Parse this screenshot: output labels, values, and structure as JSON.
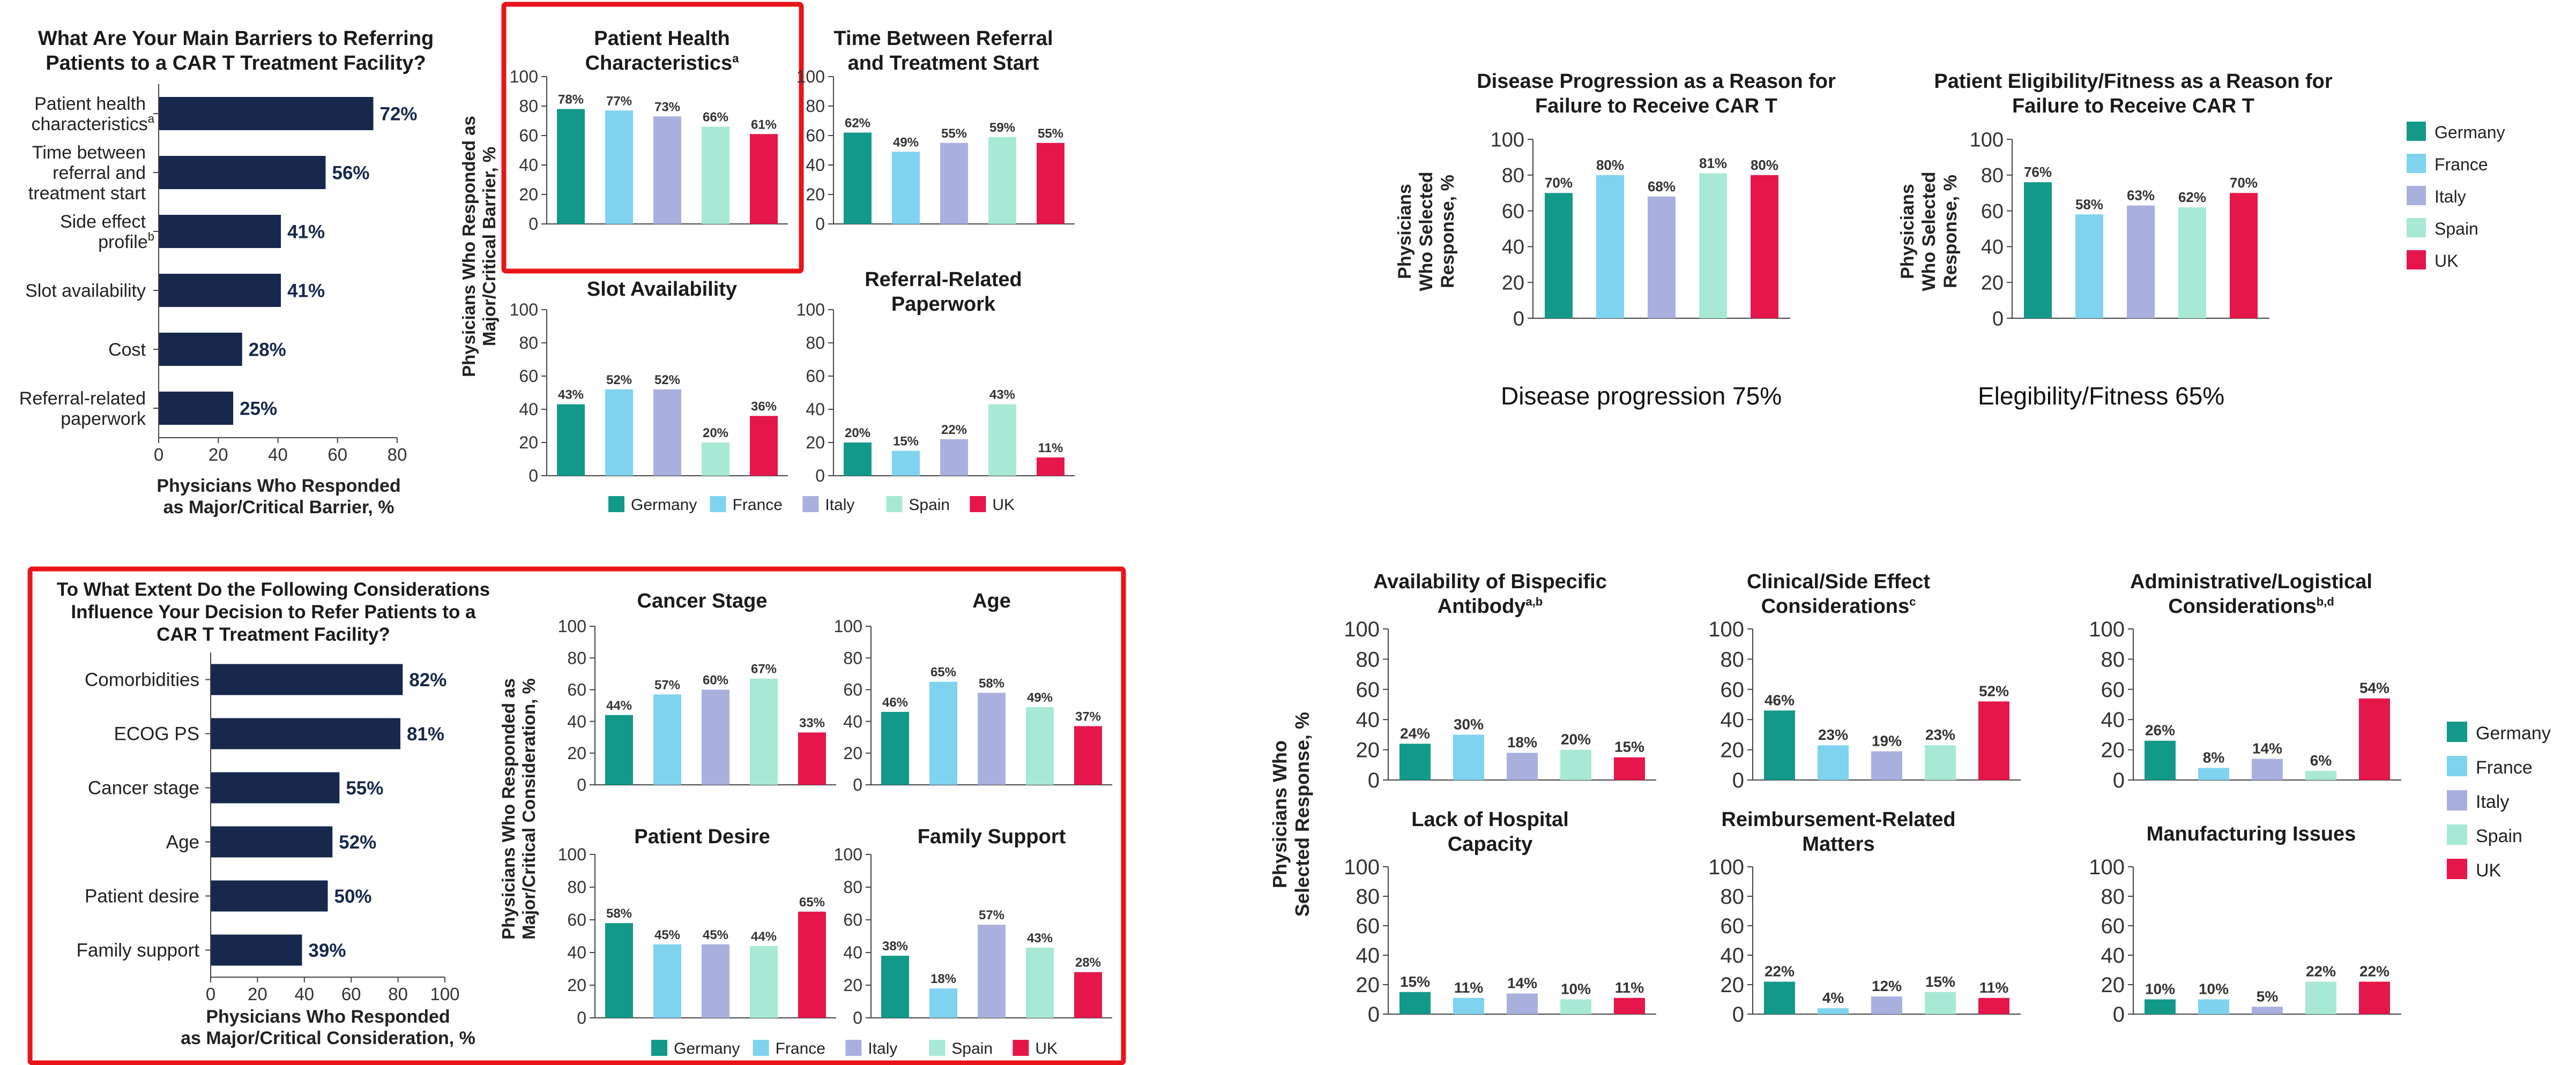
{
  "colors": {
    "navy": "#17284c",
    "highlight": "#e8141a",
    "axis": "#444444",
    "countries": {
      "Germany": "#12998a",
      "France": "#7fd3ef",
      "Italy": "#a9b0de",
      "Spain": "#a8e9d5",
      "UK": "#e5164a"
    }
  },
  "countries": [
    "Germany",
    "France",
    "Italy",
    "Spain",
    "UK"
  ],
  "captions": {
    "disease": "Disease progression 75%",
    "eligibility": "Elegibility/Fitness 65%"
  },
  "chart_data": [
    {
      "id": "barriers",
      "type": "bar",
      "orientation": "horizontal",
      "title": "What Are Your Main Barriers to Referring Patients to a CAR T Treatment Facility?",
      "categories": [
        "Patient health characteristics",
        "Time between referral and treatment start",
        "Side effect profile",
        "Slot availability",
        "Cost",
        "Referral-related paperwork"
      ],
      "values": [
        72,
        56,
        41,
        41,
        28,
        25
      ],
      "value_labels": [
        "72%",
        "56%",
        "41%",
        "41%",
        "28%",
        "25%"
      ],
      "xlim": [
        0,
        80
      ],
      "xticks": [
        0,
        20,
        40,
        60,
        80
      ],
      "xlabel": "Physicians Who Responded as Major/Critical Barrier, %"
    },
    {
      "id": "b1",
      "type": "bar",
      "title": "Patient Health Characteristics",
      "values": [
        78,
        77,
        73,
        66,
        61
      ],
      "value_labels": [
        "78%",
        "77%",
        "73%",
        "66%",
        "61%"
      ],
      "ylim": [
        0,
        100
      ]
    },
    {
      "id": "b2",
      "type": "bar",
      "title": "Time Between Referral and Treatment Start",
      "values": [
        62,
        49,
        55,
        59,
        55
      ],
      "value_labels": [
        "62%",
        "49%",
        "55%",
        "59%",
        "55%"
      ],
      "ylim": [
        0,
        100
      ]
    },
    {
      "id": "b3",
      "type": "bar",
      "title": "Slot Availability",
      "values": [
        43,
        52,
        52,
        20,
        36
      ],
      "value_labels": [
        "43%",
        "52%",
        "52%",
        "20%",
        "36%"
      ],
      "ylim": [
        0,
        100
      ]
    },
    {
      "id": "b4",
      "type": "bar",
      "title": "Referral-Related Paperwork",
      "values": [
        20,
        15,
        22,
        43,
        11
      ],
      "value_labels": [
        "20%",
        "15%",
        "22%",
        "43%",
        "11%"
      ],
      "ylim": [
        0,
        100
      ]
    },
    {
      "id": "considerations",
      "type": "bar",
      "orientation": "horizontal",
      "title": "To What Extent Do the Following Considerations Influence Your Decision to Refer Patients to a CAR T Treatment Facility?",
      "categories": [
        "Comorbidities",
        "ECOG PS",
        "Cancer stage",
        "Age",
        "Patient desire",
        "Family support"
      ],
      "values": [
        82,
        81,
        55,
        52,
        50,
        39
      ],
      "value_labels": [
        "82%",
        "81%",
        "55%",
        "52%",
        "50%",
        "39%"
      ],
      "xlim": [
        0,
        100
      ],
      "xticks": [
        0,
        20,
        40,
        60,
        80,
        100
      ],
      "xlabel": "Physicians Who Responded as Major/Critical Consideration, %"
    },
    {
      "id": "c1",
      "type": "bar",
      "title": "Cancer Stage",
      "values": [
        44,
        57,
        60,
        67,
        33
      ],
      "value_labels": [
        "44%",
        "57%",
        "60%",
        "67%",
        "33%"
      ],
      "ylim": [
        0,
        100
      ]
    },
    {
      "id": "c2",
      "type": "bar",
      "title": "Age",
      "values": [
        46,
        65,
        58,
        49,
        37
      ],
      "value_labels": [
        "46%",
        "65%",
        "58%",
        "49%",
        "37%"
      ],
      "ylim": [
        0,
        100
      ]
    },
    {
      "id": "c3",
      "type": "bar",
      "title": "Patient Desire",
      "values": [
        58,
        45,
        45,
        44,
        65
      ],
      "value_labels": [
        "58%",
        "45%",
        "45%",
        "44%",
        "65%"
      ],
      "ylim": [
        0,
        100
      ]
    },
    {
      "id": "c4",
      "type": "bar",
      "title": "Family Support",
      "values": [
        38,
        18,
        57,
        43,
        28
      ],
      "value_labels": [
        "38%",
        "18%",
        "57%",
        "43%",
        "28%"
      ],
      "ylim": [
        0,
        100
      ]
    },
    {
      "id": "d1",
      "type": "bar",
      "title": "Disease Progression as a Reason for Failure to Receive CAR T",
      "values": [
        70,
        80,
        68,
        81,
        80
      ],
      "value_labels": [
        "70%",
        "80%",
        "68%",
        "81%",
        "80%"
      ],
      "ylim": [
        0,
        100
      ]
    },
    {
      "id": "d2",
      "type": "bar",
      "title": "Patient Eligibility/Fitness as a Reason for Failure to Receive CAR T",
      "values": [
        76,
        58,
        63,
        62,
        70
      ],
      "value_labels": [
        "76%",
        "58%",
        "63%",
        "62%",
        "70%"
      ],
      "ylim": [
        0,
        100
      ]
    },
    {
      "id": "e1",
      "type": "bar",
      "title": "Availability of Bispecific Antibody",
      "title_sup": "a,b",
      "values": [
        24,
        30,
        18,
        20,
        15
      ],
      "value_labels": [
        "24%",
        "30%",
        "18%",
        "20%",
        "15%"
      ],
      "ylim": [
        0,
        100
      ]
    },
    {
      "id": "e2",
      "type": "bar",
      "title": "Clinical/Side Effect Considerations",
      "title_sup": "c",
      "values": [
        46,
        23,
        19,
        23,
        52
      ],
      "value_labels": [
        "46%",
        "23%",
        "19%",
        "23%",
        "52%"
      ],
      "ylim": [
        0,
        100
      ]
    },
    {
      "id": "e3",
      "type": "bar",
      "title": "Administrative/Logistical Considerations",
      "title_sup": "b,d",
      "values": [
        26,
        8,
        14,
        6,
        54
      ],
      "value_labels": [
        "26%",
        "8%",
        "14%",
        "6%",
        "54%"
      ],
      "ylim": [
        0,
        100
      ]
    },
    {
      "id": "e4",
      "type": "bar",
      "title": "Lack of Hospital Capacity",
      "values": [
        15,
        11,
        14,
        10,
        11
      ],
      "value_labels": [
        "15%",
        "11%",
        "14%",
        "10%",
        "11%"
      ],
      "ylim": [
        0,
        100
      ]
    },
    {
      "id": "e5",
      "type": "bar",
      "title": "Reimbursement-Related Matters",
      "values": [
        22,
        4,
        12,
        15,
        11
      ],
      "value_labels": [
        "22%",
        "4%",
        "12%",
        "15%",
        "11%"
      ],
      "ylim": [
        0,
        100
      ]
    },
    {
      "id": "e6",
      "type": "bar",
      "title": "Manufacturing Issues",
      "values": [
        10,
        10,
        5,
        22,
        22
      ],
      "value_labels": [
        "10%",
        "10%",
        "5%",
        "22%",
        "22%"
      ],
      "ylim": [
        0,
        100
      ]
    }
  ],
  "texts": {
    "barriers_title": "What Are Your Main Barriers to Referring Patients to a CAR T Treatment Facility?",
    "barriers_cat_sup": [
      "a",
      "",
      "b",
      "",
      "",
      ""
    ],
    "barriers_xlabel": [
      "Physicians Who Responded",
      "as Major/Critical Barrier, %"
    ],
    "barriers_ylabel": [
      "Physicians Who Responded as",
      "Major/Critical Barrier, %"
    ],
    "b1_title": "Patient Health Characteristics",
    "b1_sup": "a",
    "b2_title": "Time Between Referral and Treatment Start",
    "b3_title": "Slot Availability",
    "b4_title": "Referral-Related Paperwork",
    "considerations_title": "To What Extent Do the Following Considerations Influence Your Decision to Refer Patients to a CAR T Treatment Facility?",
    "considerations_xlabel": [
      "Physicians Who Responded",
      "as Major/Critical Consideration, %"
    ],
    "considerations_ylabel": [
      "Physicians Who Responded as",
      "Major/Critical Consideration, %"
    ],
    "c1_title": "Cancer Stage",
    "c2_title": "Age",
    "c3_title": "Patient Desire",
    "c4_title": "Family Support",
    "d1_title": "Disease Progression as a Reason for Failure to Receive CAR T",
    "d2_title": "Patient Eligibility/Fitness as a Reason for Failure to Receive CAR T",
    "d_ylabel": [
      "Physicians",
      "Who Selected",
      "Response, %"
    ],
    "e_ylabel": [
      "Physicians Who",
      "Selected Response, %"
    ],
    "e1_title": "Availability of Bispecific Antibody",
    "e1_sup": "a,b",
    "e2_title": "Clinical/Side Effect Considerations",
    "e2_sup": "c",
    "e3_title": "Administrative/Logistical Considerations",
    "e3_sup": "b,d",
    "e4_title": "Lack of Hospital Capacity",
    "e5_title": "Reimbursement-Related Matters",
    "e6_title": "Manufacturing Issues"
  }
}
